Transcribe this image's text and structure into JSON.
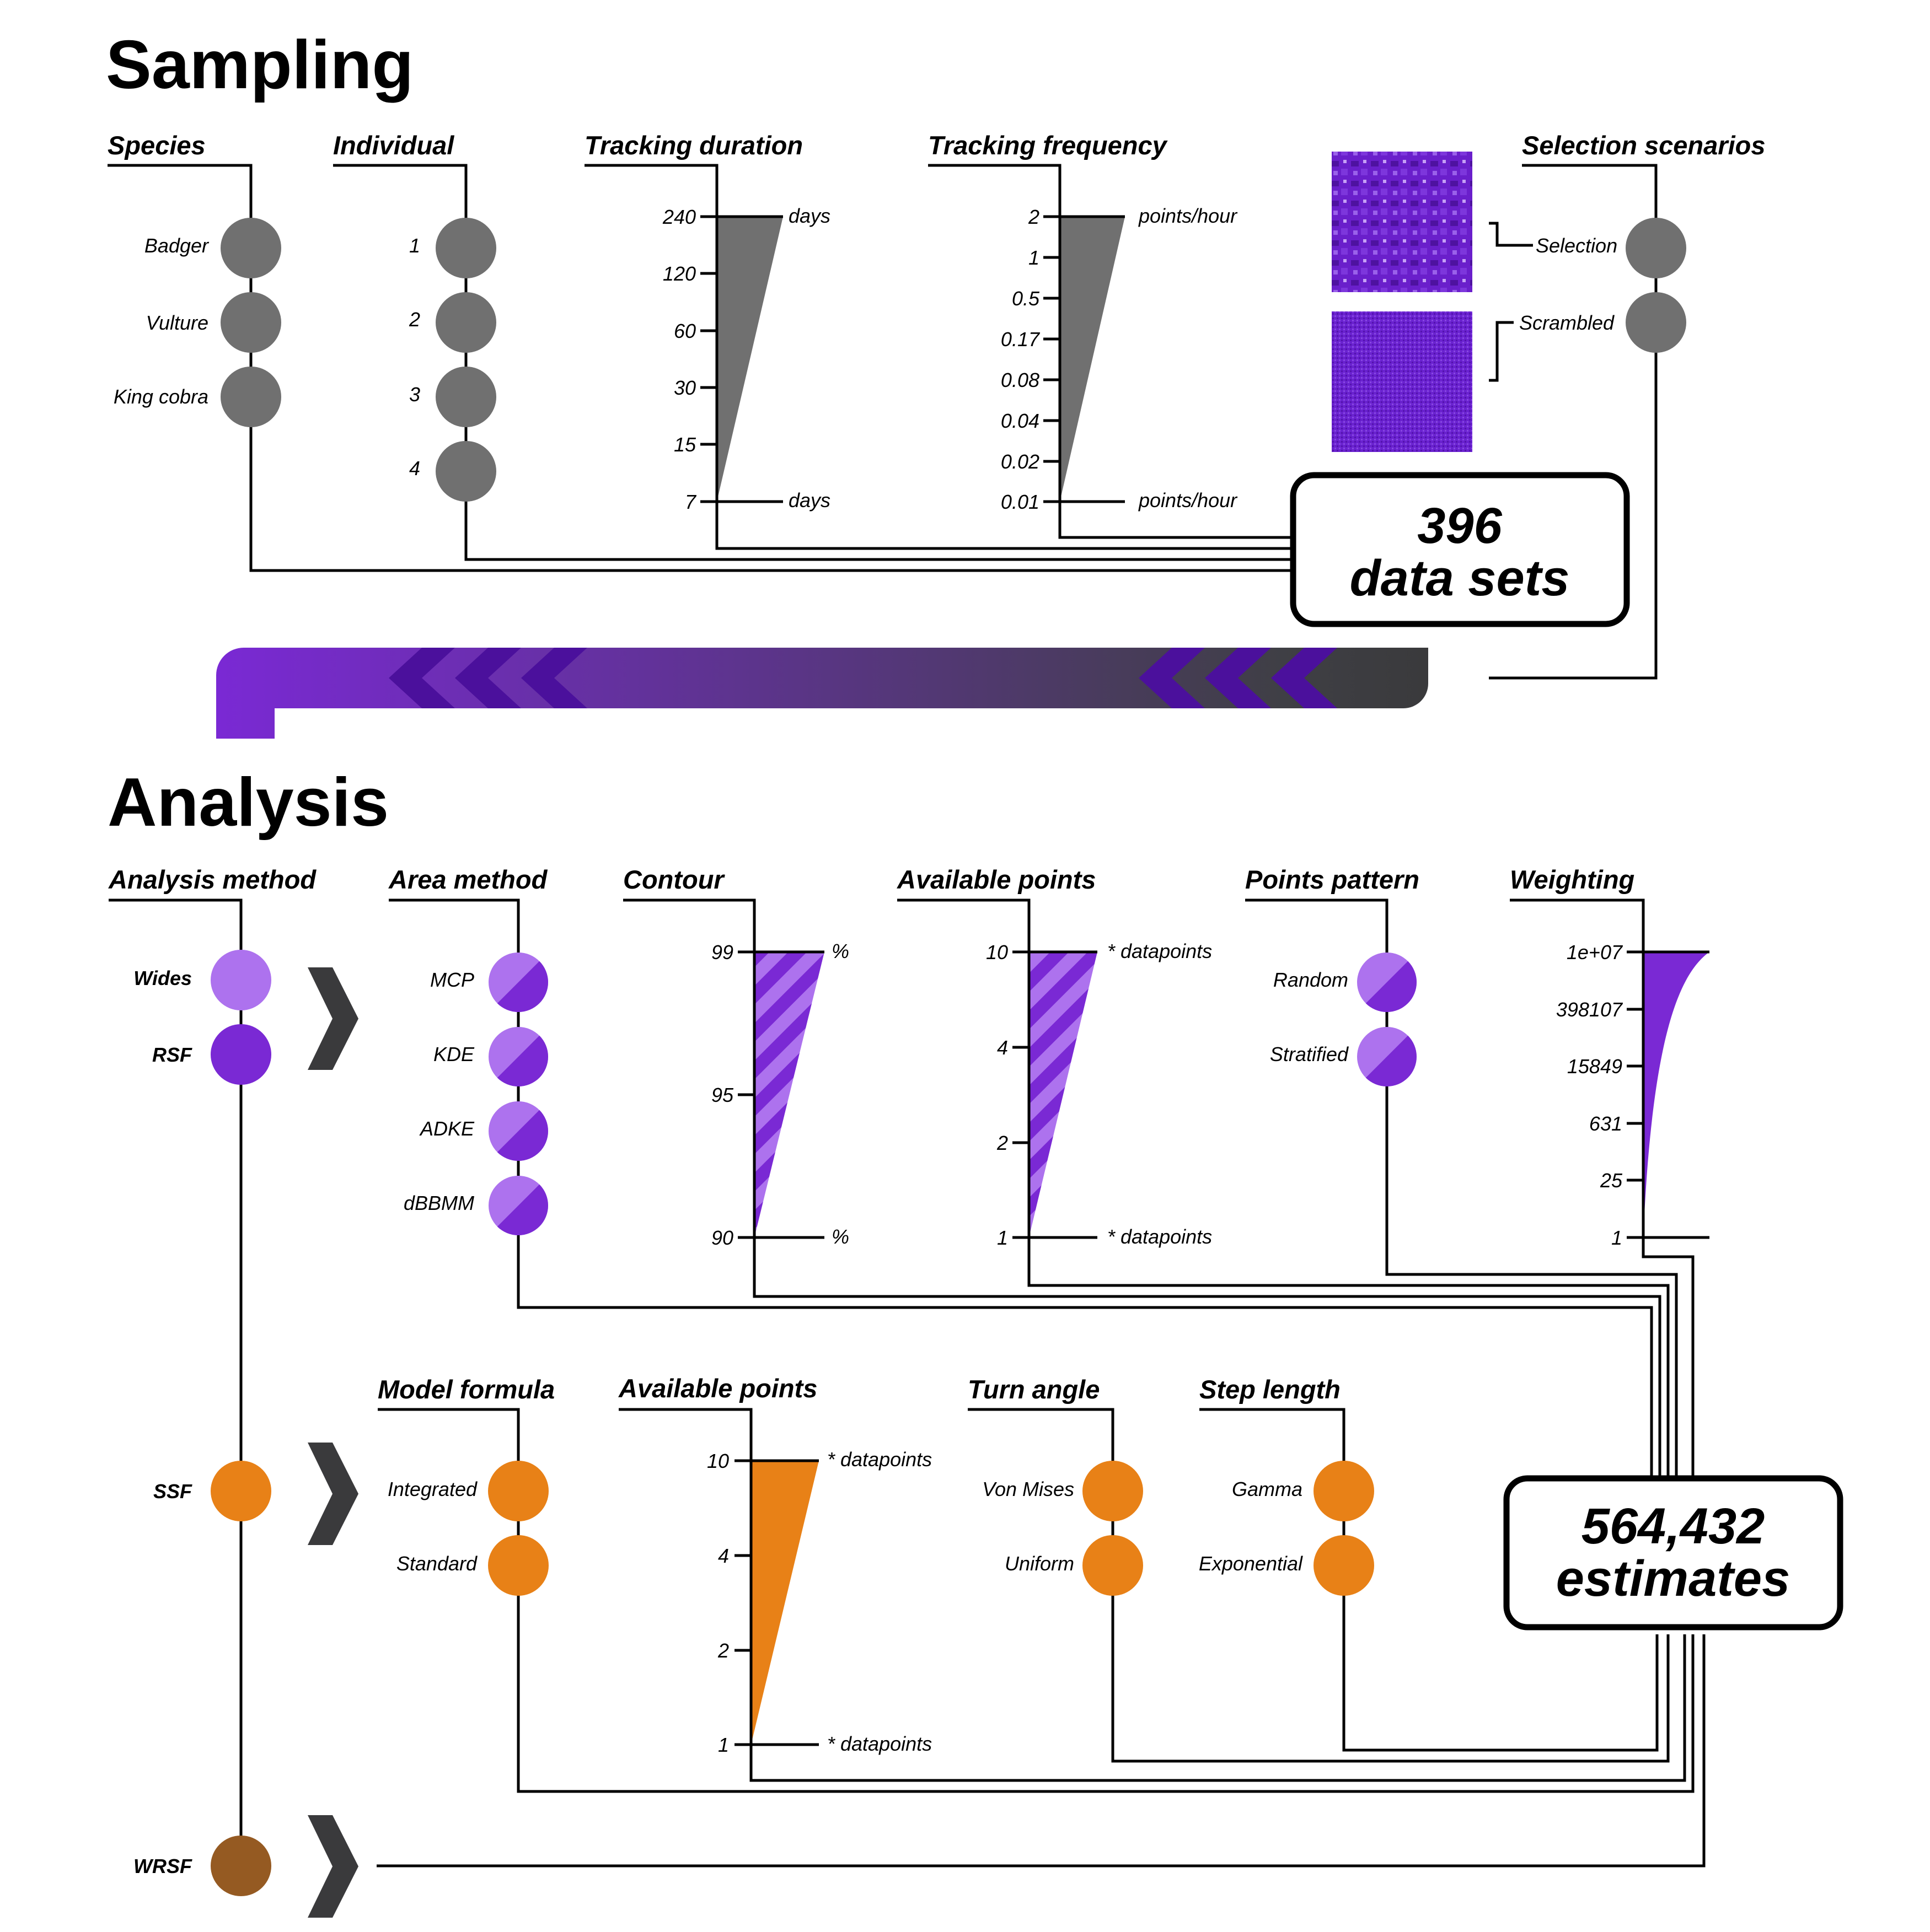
{
  "colors": {
    "grey": "#707070",
    "purple_dark": "#7a29d4",
    "purple_light": "#ad72ee",
    "orange": "#e88117",
    "brown": "#955a22",
    "chevron": "#3a3a3c"
  },
  "sampling": {
    "title": "Sampling",
    "species": {
      "heading": "Species",
      "items": [
        "Badger",
        "Vulture",
        "King cobra"
      ]
    },
    "individual": {
      "heading": "Individual",
      "items": [
        "1",
        "2",
        "3",
        "4"
      ]
    },
    "tracking_duration": {
      "heading": "Tracking duration",
      "ticks": [
        "240",
        "120",
        "60",
        "30",
        "15",
        "7"
      ],
      "unit_top": "days",
      "unit_bottom": "days"
    },
    "tracking_frequency": {
      "heading": "Tracking frequency",
      "ticks": [
        "2",
        "1",
        "0.5",
        "0.17",
        "0.08",
        "0.04",
        "0.02",
        "0.01"
      ],
      "unit_top": "points/hour",
      "unit_bottom": "points/hour"
    },
    "selection_scenarios": {
      "heading": "Selection scenarios",
      "items": [
        "Selection",
        "Scrambled"
      ]
    },
    "summary": {
      "count": "396",
      "label": "data sets"
    }
  },
  "analysis": {
    "title": "Analysis",
    "analysis_method": {
      "heading": "Analysis method",
      "items": [
        "Wides",
        "RSF",
        "SSF",
        "WRSF"
      ]
    },
    "area_method": {
      "heading": "Area method",
      "items": [
        "MCP",
        "KDE",
        "ADKE",
        "dBBMM"
      ]
    },
    "contour": {
      "heading": "Contour",
      "ticks": [
        "99",
        "95",
        "90"
      ],
      "unit_top": "%",
      "unit_bottom": "%"
    },
    "available_points_rsf": {
      "heading": "Available points",
      "ticks": [
        "10",
        "4",
        "2",
        "1"
      ],
      "unit_top": "* datapoints",
      "unit_bottom": "* datapoints"
    },
    "points_pattern": {
      "heading": "Points pattern",
      "items": [
        "Random",
        "Stratified"
      ]
    },
    "weighting": {
      "heading": "Weighting",
      "ticks": [
        "1e+07",
        "398107",
        "15849",
        "631",
        "25",
        "1"
      ]
    },
    "model_formula": {
      "heading": "Model formula",
      "items": [
        "Integrated",
        "Standard"
      ]
    },
    "available_points_ssf": {
      "heading": "Available points",
      "ticks": [
        "10",
        "4",
        "2",
        "1"
      ],
      "unit_top": "* datapoints",
      "unit_bottom": "* datapoints"
    },
    "turn_angle": {
      "heading": "Turn angle",
      "items": [
        "Von Mises",
        "Uniform"
      ]
    },
    "step_length": {
      "heading": "Step length",
      "items": [
        "Gamma",
        "Exponential"
      ]
    },
    "summary": {
      "count": "564,432",
      "label": "estimates"
    }
  }
}
